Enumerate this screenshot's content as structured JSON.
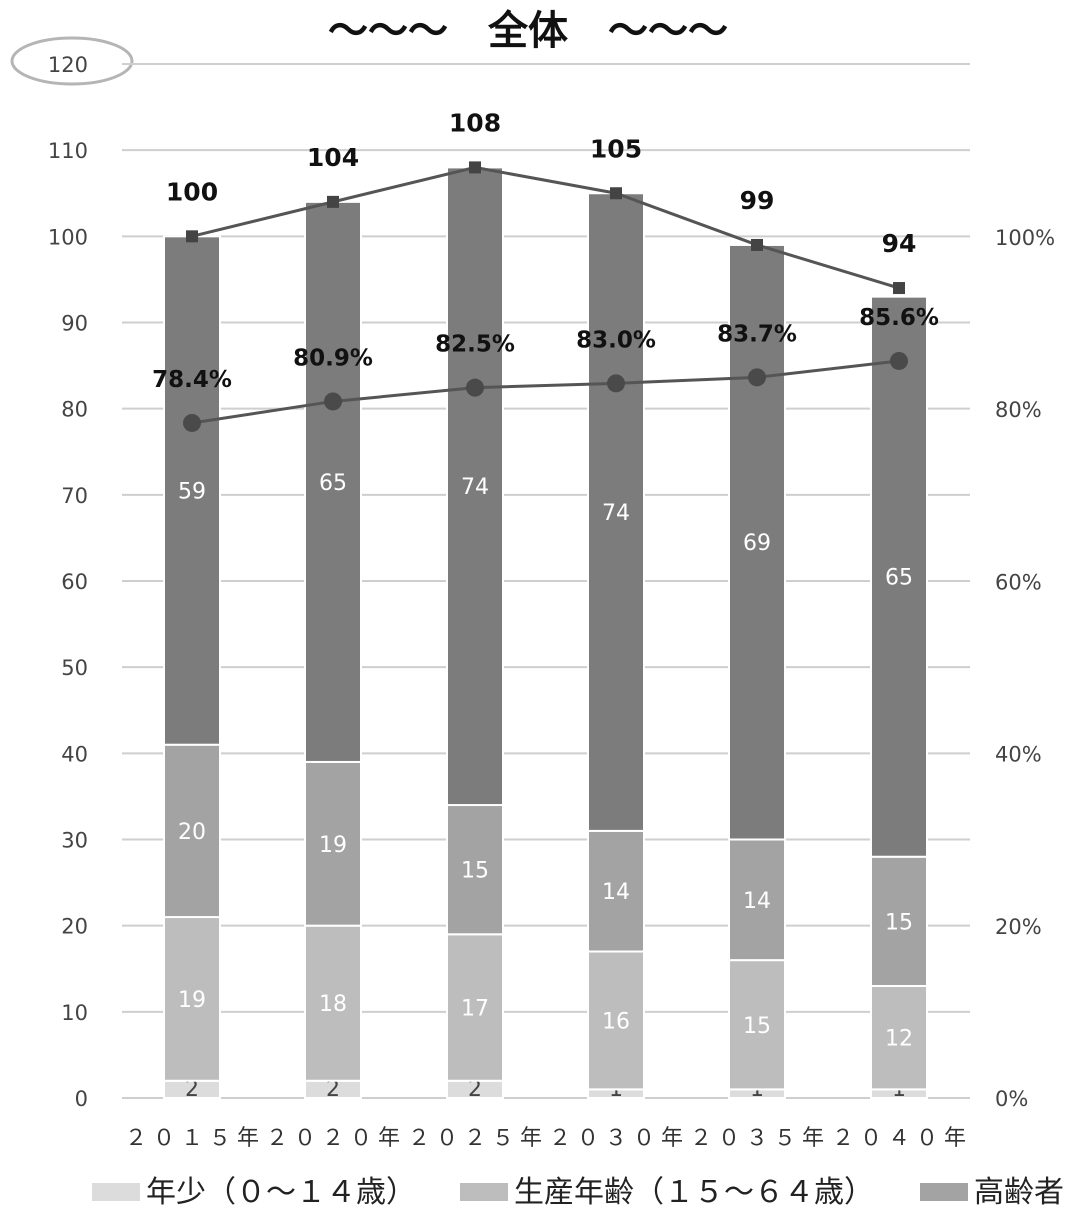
{
  "chart_data": {
    "type": "bar",
    "stacked": true,
    "title": "～～～　全体　～～～",
    "categories": [
      "２０１５年",
      "２０２０年",
      "２０２５年",
      "２０３０年",
      "２０３５年",
      "２０４０年"
    ],
    "series": [
      {
        "name": "年少（０～１４歳）",
        "values": [
          2,
          2,
          2,
          1,
          1,
          1
        ],
        "color": "#dcdcdc"
      },
      {
        "name": "生産年齢（１５～６４歳）",
        "values": [
          19,
          18,
          17,
          16,
          15,
          12
        ],
        "color": "#bdbdbd"
      },
      {
        "name": "高齢者",
        "values": [
          20,
          19,
          15,
          14,
          14,
          15
        ],
        "color": "#a3a3a3"
      },
      {
        "name": "",
        "values": [
          59,
          65,
          74,
          74,
          69,
          65
        ],
        "color": "#7c7c7c"
      }
    ],
    "totals": {
      "values": [
        100,
        104,
        108,
        105,
        99,
        94
      ],
      "labels": [
        "100",
        "104",
        "108",
        "105",
        "99",
        "94"
      ]
    },
    "ratio_line": {
      "values": [
        78.4,
        80.9,
        82.5,
        83.0,
        83.7,
        85.6
      ],
      "labels": [
        "78.4%",
        "80.9%",
        "82.5%",
        "83.0%",
        "83.7%",
        "85.6%"
      ]
    },
    "y_left": {
      "ticks": [
        "0",
        "10",
        "20",
        "30",
        "40",
        "50",
        "60",
        "70",
        "80",
        "90",
        "100",
        "110",
        "120"
      ],
      "ylim": [
        0,
        120
      ]
    },
    "y_right": {
      "ticks": [
        "0%",
        "20%",
        "40%",
        "60%",
        "80%",
        "100%"
      ],
      "ylim": [
        0,
        100
      ]
    },
    "legend": {
      "position": "bottom",
      "items": [
        "年少（０～１４歳）",
        "生産年齢（１５～６４歳）",
        "高齢者"
      ]
    },
    "grid": true
  }
}
